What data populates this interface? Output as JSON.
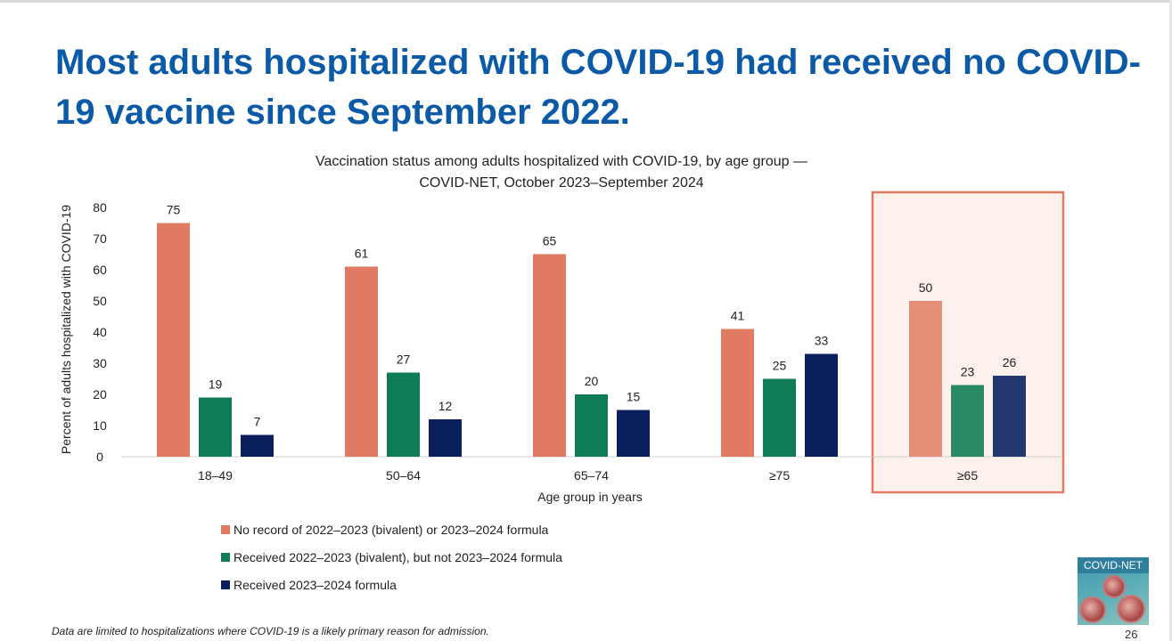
{
  "slide": {
    "title": "Most adults hospitalized with COVID-19 had received no COVID-19 vaccine since September 2022.",
    "footnote": "Data are limited to hospitalizations where COVID-19 is a likely primary reason for admission.",
    "page_number": "26",
    "logo_text": "COVID-NET"
  },
  "chart_data": {
    "type": "bar",
    "title_lines": [
      "Vaccination status among adults hospitalized with COVID-19, by age group —",
      "COVID-NET, October 2023–September 2024"
    ],
    "categories": [
      "18–49",
      "50–64",
      "65–74",
      "≥75",
      "≥65"
    ],
    "series": [
      {
        "name": "No record of 2022–2023 (bivalent) or 2023–2024 formula",
        "values": [
          75,
          61,
          65,
          41,
          50
        ],
        "color": "#e07a62",
        "highlight_color": "#e58e78"
      },
      {
        "name": "Received 2022–2023 (bivalent), but not 2023–2024 formula",
        "values": [
          19,
          27,
          20,
          25,
          23
        ],
        "color": "#0e7d57",
        "highlight_color": "#2a8a66"
      },
      {
        "name": "Received 2023–2024 formula",
        "values": [
          7,
          12,
          15,
          33,
          26
        ],
        "color": "#0b1f5c",
        "highlight_color": "#24386f"
      }
    ],
    "xlabel": "Age group in years",
    "ylabel": "Percent of adults hospitalized with COVID-19",
    "ylim": [
      0,
      80
    ],
    "yticks": [
      0,
      10,
      20,
      30,
      40,
      50,
      60,
      70,
      80
    ],
    "highlight_category": "≥65",
    "highlight_color": "#e07a62",
    "grid": false
  }
}
